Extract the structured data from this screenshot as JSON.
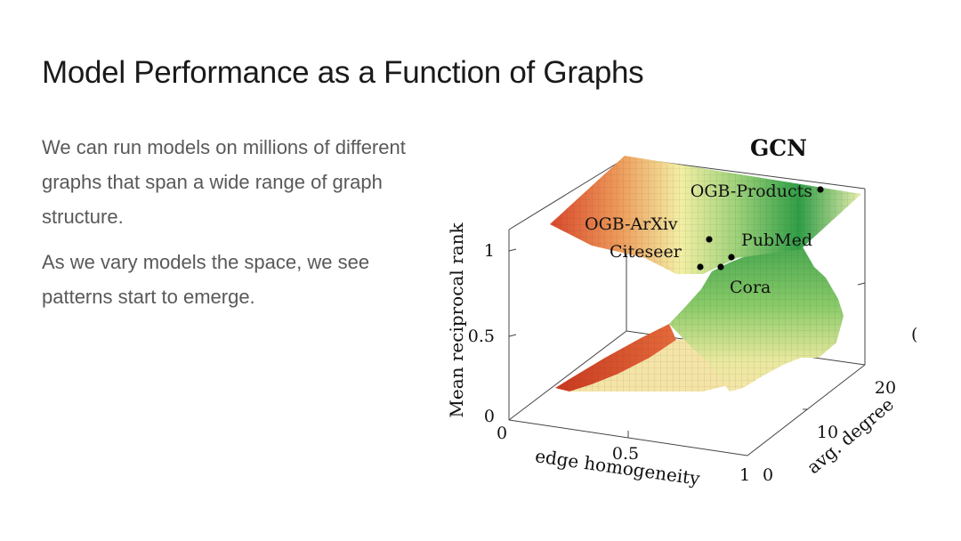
{
  "slide": {
    "title": "Model Performance as a Function of Graphs",
    "paragraphs": [
      "We can run models on millions of different graphs that span a wide range of graph structure.",
      "As we vary models the space, we see patterns start to emerge."
    ]
  },
  "figure": {
    "title": "GCN",
    "axes": {
      "z_label": "Mean reciprocal rank",
      "x_label": "edge homogeneity",
      "y_label": "avg. degree",
      "z_ticks": [
        "0",
        "0.5",
        "1"
      ],
      "x_ticks": [
        "0",
        "0.5",
        "1"
      ],
      "y_ticks": [
        "0",
        "10",
        "20"
      ],
      "cut_off_tick": "("
    },
    "datasets": [
      {
        "name": "OGB-Products"
      },
      {
        "name": "OGB-ArXiv"
      },
      {
        "name": "Citeseer"
      },
      {
        "name": "PubMed"
      },
      {
        "name": "Cora"
      }
    ],
    "colors": {
      "low": "#d9472b",
      "mid": "#f3efa5",
      "high": "#2f9e46"
    }
  }
}
